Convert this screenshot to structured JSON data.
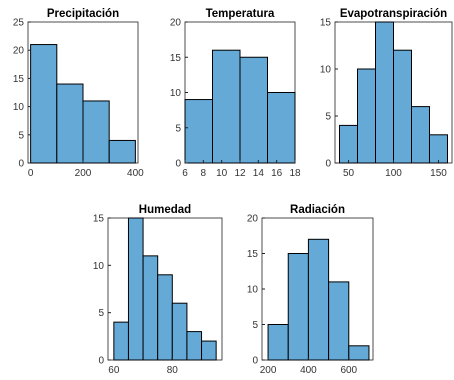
{
  "chart_data": [
    {
      "type": "histogram",
      "title": "Precipitación",
      "bins": [
        0,
        100,
        200,
        300,
        400
      ],
      "values": [
        21,
        14,
        11,
        4
      ],
      "color": "#65a9d7",
      "xlim": [
        -10,
        410
      ],
      "xticks": [
        0,
        200,
        400
      ],
      "ylim": [
        0,
        25
      ],
      "yticks": [
        0,
        5,
        10,
        15,
        20,
        25
      ]
    },
    {
      "type": "histogram",
      "title": "Temperatura",
      "bins": [
        6,
        9,
        12,
        15,
        18
      ],
      "values": [
        9,
        16,
        15,
        10
      ],
      "color": "#65a9d7",
      "xlim": [
        6,
        18
      ],
      "xticks": [
        6,
        8,
        10,
        12,
        14,
        16,
        18
      ],
      "ylim": [
        0,
        20
      ],
      "yticks": [
        0,
        5,
        10,
        15,
        20
      ]
    },
    {
      "type": "histogram",
      "title": "Evapotranspiración",
      "bins": [
        40,
        60,
        80,
        100,
        120,
        140,
        160
      ],
      "values": [
        4,
        10,
        15,
        12,
        6,
        3
      ],
      "color": "#65a9d7",
      "xlim": [
        35,
        165
      ],
      "xticks": [
        50,
        100,
        150
      ],
      "ylim": [
        0,
        15
      ],
      "yticks": [
        0,
        5,
        10,
        15
      ]
    },
    {
      "type": "histogram",
      "title": "Humedad",
      "bins": [
        60,
        65,
        70,
        75,
        80,
        85,
        90,
        95
      ],
      "values": [
        4,
        15,
        11,
        9,
        6,
        3,
        2
      ],
      "color": "#65a9d7",
      "xlim": [
        58,
        97
      ],
      "xticks": [
        60,
        80
      ],
      "ylim": [
        0,
        15
      ],
      "yticks": [
        0,
        5,
        10,
        15
      ]
    },
    {
      "type": "histogram",
      "title": "Radiación",
      "bins": [
        200,
        300,
        400,
        500,
        600,
        700
      ],
      "values": [
        5,
        15,
        17,
        11,
        2
      ],
      "color": "#65a9d7",
      "xlim": [
        170,
        720
      ],
      "xticks": [
        200,
        400,
        600
      ],
      "ylim": [
        0,
        20
      ],
      "yticks": [
        0,
        5,
        10,
        15,
        20
      ]
    }
  ]
}
